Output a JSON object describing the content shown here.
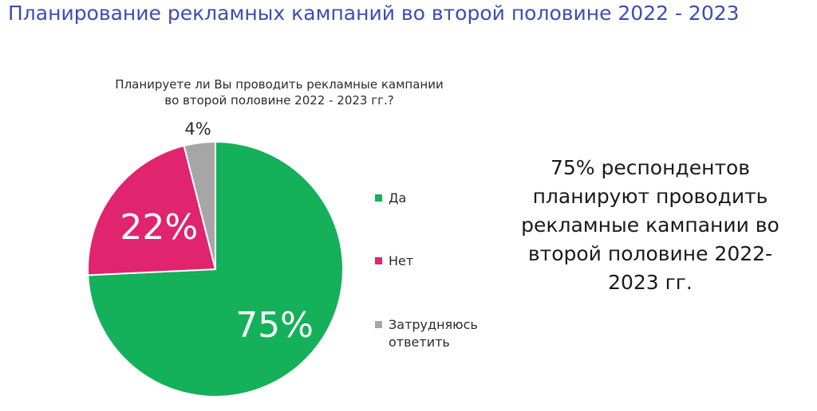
{
  "page_title": "Планирование рекламных кампаний во второй половине 2022 - 2023",
  "summary_text": "75% респондентов планируют проводить рекламные кампании во второй половине 2022-2023 гг.",
  "chart_data": {
    "type": "pie",
    "title": "Планируете ли Вы проводить рекламные кампании во второй половине 2022 - 2023 гг.?",
    "slices": [
      {
        "label": "Да",
        "value": 75,
        "display": "75%",
        "color": "#14b05a"
      },
      {
        "label": "Нет",
        "value": 22,
        "display": "22%",
        "color": "#e0246e"
      },
      {
        "label": "Затрудняюсь ответить",
        "value": 4,
        "display": "4%",
        "color": "#a6a6a6"
      }
    ],
    "legend_position": "right"
  }
}
